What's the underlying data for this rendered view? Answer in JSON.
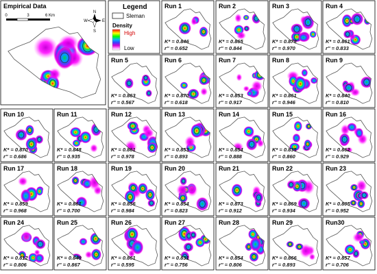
{
  "empirical": {
    "title": "Empirical Data"
  },
  "scale_bar": {
    "labels": [
      "0",
      "3",
      "6 Km"
    ]
  },
  "compass": {
    "n": "N",
    "s": "S",
    "e": "E",
    "w": "W"
  },
  "legend": {
    "title": "Legend",
    "region_label": "Sleman",
    "density_label": "Density",
    "high_label": "High",
    "low_label": "Low"
  },
  "colors": {
    "ramp": [
      "#ff0000",
      "#ffff00",
      "#00ff00",
      "#00b4ff",
      "#3d3dff",
      "#d400d4",
      "#ff00ff",
      "#ff8cff",
      "#ffffff"
    ],
    "border": "#555555",
    "hotspot_outline": "#2a2a2a"
  },
  "runs": [
    {
      "title": "Run 1",
      "k": "K* = 0.846",
      "r": "r'' = 0.652"
    },
    {
      "title": "Run 2",
      "k": "K* = 0.865",
      "r": "r'' = 0.844"
    },
    {
      "title": "Run 3",
      "k": "K* = 0.878",
      "r": "r'' = 0.970"
    },
    {
      "title": "Run 4",
      "k": "K* = 0.861",
      "r": "r'' = 0.833"
    },
    {
      "title": "Run 5",
      "k": "K* = 0.863",
      "r": "r'' = 0.567"
    },
    {
      "title": "Run 6",
      "k": "K* = 0.870",
      "r": "r'' = 0.618"
    },
    {
      "title": "Run 7",
      "k": "K* = 0.853",
      "r": "r'' = 0.917"
    },
    {
      "title": "Run 8",
      "k": "K* = 0.861",
      "r": "r'' = 0.946"
    },
    {
      "title": "Run 9",
      "k": "K* = 0.840",
      "r": "r'' = 0.810"
    },
    {
      "title": "Run 10",
      "k": "K* = 0.870",
      "r": "r'' = 0.686"
    },
    {
      "title": "Run 11",
      "k": "K* = 0.848",
      "r": "r'' = 0.935"
    },
    {
      "title": "Run 12",
      "k": "K* = 0.861",
      "r": "r'' = 0.978"
    },
    {
      "title": "Run 13",
      "k": "K* = 0.853",
      "r": "r'' = 0.893"
    },
    {
      "title": "Run 14",
      "k": "K* = 0.854",
      "r": "r'' = 0.888"
    },
    {
      "title": "Run 15",
      "k": "K* = 0.835",
      "r": "r'' = 0.860"
    },
    {
      "title": "Run 16",
      "k": "K* = 0.862",
      "r": "r'' = 0.929"
    },
    {
      "title": "Run 17",
      "k": "K* = 0.859",
      "r": "r'' = 0.968"
    },
    {
      "title": "Run 18",
      "k": "K* = 0.861",
      "r": "r'' = 0.700"
    },
    {
      "title": "Run 19",
      "k": "K* = 0.856",
      "r": "r'' = 0.984"
    },
    {
      "title": "Run 20",
      "k": "K* = 0.854",
      "r": "r'' = 0.823"
    },
    {
      "title": "Run 21",
      "k": "K* = 0.873",
      "r": "r'' = 0.912"
    },
    {
      "title": "Run 22",
      "k": "K* = 0.869",
      "r": "r'' = 0.934"
    },
    {
      "title": "Run 23",
      "k": "K* = 0.805",
      "r": "r'' = 0.952"
    },
    {
      "title": "Run 24",
      "k": "K* = 0.812",
      "r": "r'' = 0.806"
    },
    {
      "title": "Run 25",
      "k": "K* = 0.849",
      "r": "r'' = 0.867"
    },
    {
      "title": "Run 26",
      "k": "K* = 0.861",
      "r": "r'' = 0.595"
    },
    {
      "title": "Run 27",
      "k": "K* = 0.831",
      "r": "r'' = 0.756"
    },
    {
      "title": "Run 28",
      "k": "K* = 0.854",
      "r": "r'' = 0.806"
    },
    {
      "title": "Run 29",
      "k": "K* = 0.866",
      "r": "r'' = 0.893"
    },
    {
      "title": "Run30",
      "k": "K* = 0.857",
      "r": "r'' = 0.706"
    }
  ]
}
